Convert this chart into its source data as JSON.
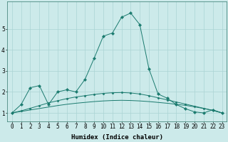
{
  "xlabel": "Humidex (Indice chaleur)",
  "ylabel": "",
  "background_color": "#cceaea",
  "grid_color": "#aad4d4",
  "line_color": "#1a7a6e",
  "marker_color": "#1a7a6e",
  "xlim": [
    -0.5,
    23.5
  ],
  "ylim": [
    0.6,
    6.3
  ],
  "xticks": [
    0,
    1,
    2,
    3,
    4,
    5,
    6,
    7,
    8,
    9,
    10,
    11,
    12,
    13,
    14,
    15,
    16,
    17,
    18,
    19,
    20,
    21,
    22,
    23
  ],
  "yticks": [
    1,
    2,
    3,
    4,
    5
  ],
  "series1_x": [
    0,
    1,
    2,
    3,
    4,
    5,
    6,
    7,
    8,
    9,
    10,
    11,
    12,
    13,
    14,
    15,
    16,
    17,
    18,
    19,
    20,
    21,
    22,
    23
  ],
  "series1_y": [
    1.0,
    1.4,
    2.2,
    2.3,
    1.4,
    2.0,
    2.1,
    2.0,
    2.6,
    3.6,
    4.65,
    4.8,
    5.55,
    5.75,
    5.2,
    3.1,
    1.9,
    1.7,
    1.4,
    1.2,
    1.05,
    1.0,
    1.15,
    1.0
  ],
  "series2_x": [
    0,
    1,
    2,
    3,
    4,
    5,
    6,
    7,
    8,
    9,
    10,
    11,
    12,
    13,
    14,
    15,
    16,
    17,
    18,
    19,
    20,
    21,
    22,
    23
  ],
  "series2_y": [
    1.0,
    1.1,
    1.22,
    1.35,
    1.48,
    1.58,
    1.68,
    1.76,
    1.82,
    1.88,
    1.93,
    1.96,
    1.97,
    1.95,
    1.9,
    1.82,
    1.72,
    1.62,
    1.52,
    1.42,
    1.32,
    1.22,
    1.12,
    1.0
  ],
  "series3_x": [
    0,
    1,
    2,
    3,
    4,
    5,
    6,
    7,
    8,
    9,
    10,
    11,
    12,
    13,
    14,
    15,
    16,
    17,
    18,
    19,
    20,
    21,
    22,
    23
  ],
  "series3_y": [
    1.0,
    1.07,
    1.14,
    1.21,
    1.28,
    1.35,
    1.41,
    1.46,
    1.5,
    1.54,
    1.57,
    1.59,
    1.6,
    1.59,
    1.57,
    1.54,
    1.5,
    1.46,
    1.41,
    1.36,
    1.29,
    1.21,
    1.12,
    1.0
  ],
  "figsize": [
    3.2,
    2.0
  ],
  "dpi": 100,
  "tick_fontsize": 5.5,
  "axis_fontsize": 6.5
}
